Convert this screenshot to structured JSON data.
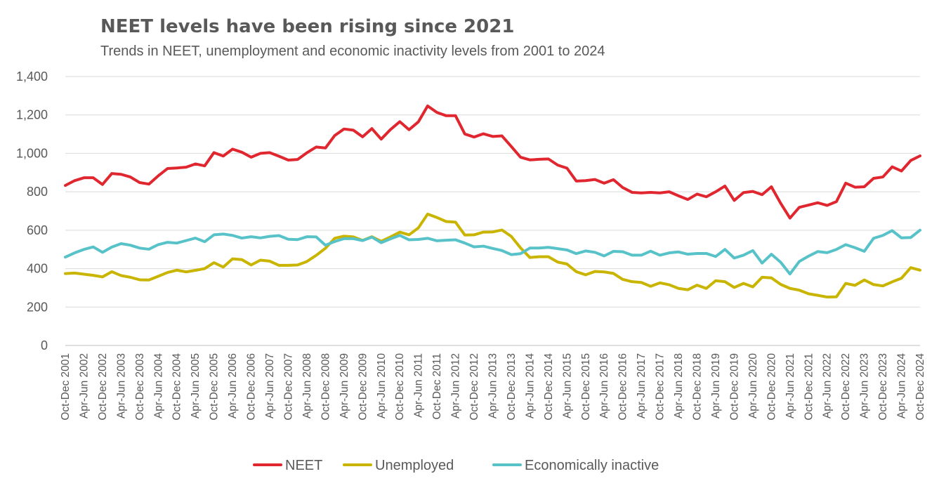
{
  "chart_data": {
    "type": "line",
    "title": "NEET levels have been rising since 2021",
    "subtitle": "Trends in NEET, unemployment and economic inactivity levels from 2001 to 2024",
    "xlabel": "",
    "ylabel": "",
    "ylim": [
      0,
      1400
    ],
    "yticks": [
      0,
      200,
      400,
      600,
      800,
      1000,
      1200,
      1400
    ],
    "ytick_labels": [
      "0",
      "200",
      "400",
      "600",
      "800",
      "1,000",
      "1,200",
      "1,400"
    ],
    "grid": true,
    "legend_position": "bottom",
    "x": [
      "Oct-Dec 2001",
      "Jan-Mar 2002",
      "Apr-Jun 2002",
      "Jul-Sep 2002",
      "Oct-Dec 2002",
      "Jan-Mar 2003",
      "Apr-Jun 2003",
      "Jul-Sep 2003",
      "Oct-Dec 2003",
      "Jan-Mar 2004",
      "Apr-Jun 2004",
      "Jul-Sep 2004",
      "Oct-Dec 2004",
      "Jan-Mar 2005",
      "Apr-Jun 2005",
      "Jul-Sep 2005",
      "Oct-Dec 2005",
      "Jan-Mar 2006",
      "Apr-Jun 2006",
      "Jul-Sep 2006",
      "Oct-Dec 2006",
      "Jan-Mar 2007",
      "Apr-Jun 2007",
      "Jul-Sep 2007",
      "Oct-Dec 2007",
      "Jan-Mar 2008",
      "Apr-Jun 2008",
      "Jul-Sep 2008",
      "Oct-Dec 2008",
      "Jan-Mar 2009",
      "Apr-Jun 2009",
      "Jul-Sep 2009",
      "Oct-Dec 2009",
      "Jan-Mar 2010",
      "Apr-Jun 2010",
      "Jul-Sep 2010",
      "Oct-Dec 2010",
      "Jan-Mar 2011",
      "Apr-Jun 2011",
      "Jul-Sep 2011",
      "Oct-Dec 2011",
      "Jan-Mar 2012",
      "Apr-Jun 2012",
      "Jul-Sep 2012",
      "Oct-Dec 2012",
      "Jan-Mar 2013",
      "Apr-Jun 2013",
      "Jul-Sep 2013",
      "Oct-Dec 2013",
      "Jan-Mar 2014",
      "Apr-Jun 2014",
      "Jul-Sep 2014",
      "Oct-Dec 2014",
      "Jan-Mar 2015",
      "Apr-Jun 2015",
      "Jul-Sep 2015",
      "Oct-Dec 2015",
      "Jan-Mar 2016",
      "Apr-Jun 2016",
      "Jul-Sep 2016",
      "Oct-Dec 2016",
      "Jan-Mar 2017",
      "Apr-Jun 2017",
      "Jul-Sep 2017",
      "Oct-Dec 2017",
      "Jan-Mar 2018",
      "Apr-Jun 2018",
      "Jul-Sep 2018",
      "Oct-Dec 2018",
      "Jan-Mar 2019",
      "Apr-Jun 2019",
      "Jul-Sep 2019",
      "Oct-Dec 2019",
      "Jan-Mar 2020",
      "Apr-Jun 2020",
      "Jul-Sep 2020",
      "Oct-Dec 2020",
      "Jan-Mar 2021",
      "Apr-Jun 2021",
      "Jul-Sep 2021",
      "Oct-Dec 2021",
      "Jan-Mar 2022",
      "Apr-Jun 2022",
      "Jul-Sep 2022",
      "Oct-Dec 2022",
      "Jan-Mar 2023",
      "Apr-Jun 2023",
      "Jul-Sep 2023",
      "Oct-Dec 2023",
      "Jan-Mar 2024",
      "Apr-Jun 2024",
      "Jul-Sep 2024",
      "Oct-Dec 2024"
    ],
    "x_tick_every": 2,
    "series": [
      {
        "name": "NEET",
        "color": "#e0262f",
        "values": [
          833,
          858,
          873,
          873,
          838,
          895,
          891,
          877,
          848,
          840,
          883,
          921,
          924,
          928,
          945,
          935,
          1004,
          986,
          1022,
          1006,
          980,
          1000,
          1004,
          985,
          965,
          968,
          1003,
          1033,
          1028,
          1093,
          1127,
          1121,
          1086,
          1129,
          1074,
          1124,
          1165,
          1123,
          1164,
          1247,
          1213,
          1196,
          1196,
          1101,
          1085,
          1102,
          1088,
          1091,
          1036,
          980,
          966,
          969,
          971,
          939,
          923,
          856,
          858,
          864,
          845,
          863,
          822,
          797,
          794,
          797,
          794,
          800,
          779,
          760,
          788,
          774,
          800,
          830,
          755,
          796,
          802,
          785,
          826,
          740,
          663,
          719,
          731,
          743,
          729,
          749,
          845,
          824,
          826,
          870,
          877,
          930,
          908,
          963,
          987
        ]
      },
      {
        "name": "Unemployed",
        "color": "#c9b400",
        "values": [
          374,
          377,
          371,
          365,
          357,
          384,
          364,
          355,
          342,
          341,
          360,
          380,
          392,
          383,
          391,
          400,
          431,
          408,
          451,
          447,
          419,
          444,
          439,
          417,
          417,
          419,
          437,
          469,
          506,
          558,
          569,
          565,
          547,
          566,
          542,
          565,
          590,
          576,
          612,
          684,
          666,
          645,
          642,
          575,
          576,
          590,
          591,
          601,
          568,
          508,
          458,
          462,
          462,
          434,
          424,
          384,
          368,
          385,
          383,
          375,
          344,
          332,
          328,
          308,
          326,
          316,
          297,
          290,
          314,
          297,
          337,
          332,
          302,
          323,
          305,
          355,
          352,
          318,
          297,
          288,
          269,
          261,
          252,
          253,
          323,
          313,
          341,
          317,
          310,
          331,
          350,
          405,
          392
        ]
      },
      {
        "name": "Economically inactive",
        "color": "#58c2c9",
        "values": [
          460,
          482,
          500,
          513,
          485,
          512,
          530,
          522,
          507,
          501,
          525,
          537,
          533,
          546,
          559,
          540,
          576,
          580,
          573,
          559,
          566,
          560,
          568,
          572,
          553,
          551,
          566,
          565,
          522,
          541,
          556,
          556,
          546,
          564,
          535,
          555,
          573,
          550,
          552,
          558,
          545,
          548,
          550,
          533,
          513,
          517,
          505,
          494,
          473,
          478,
          507,
          507,
          511,
          504,
          497,
          478,
          492,
          485,
          466,
          490,
          488,
          470,
          470,
          491,
          470,
          482,
          487,
          475,
          479,
          479,
          463,
          500,
          455,
          470,
          494,
          429,
          475,
          433,
          372,
          437,
          465,
          489,
          483,
          500,
          525,
          509,
          490,
          558,
          573,
          598,
          560,
          562,
          600
        ]
      }
    ]
  }
}
